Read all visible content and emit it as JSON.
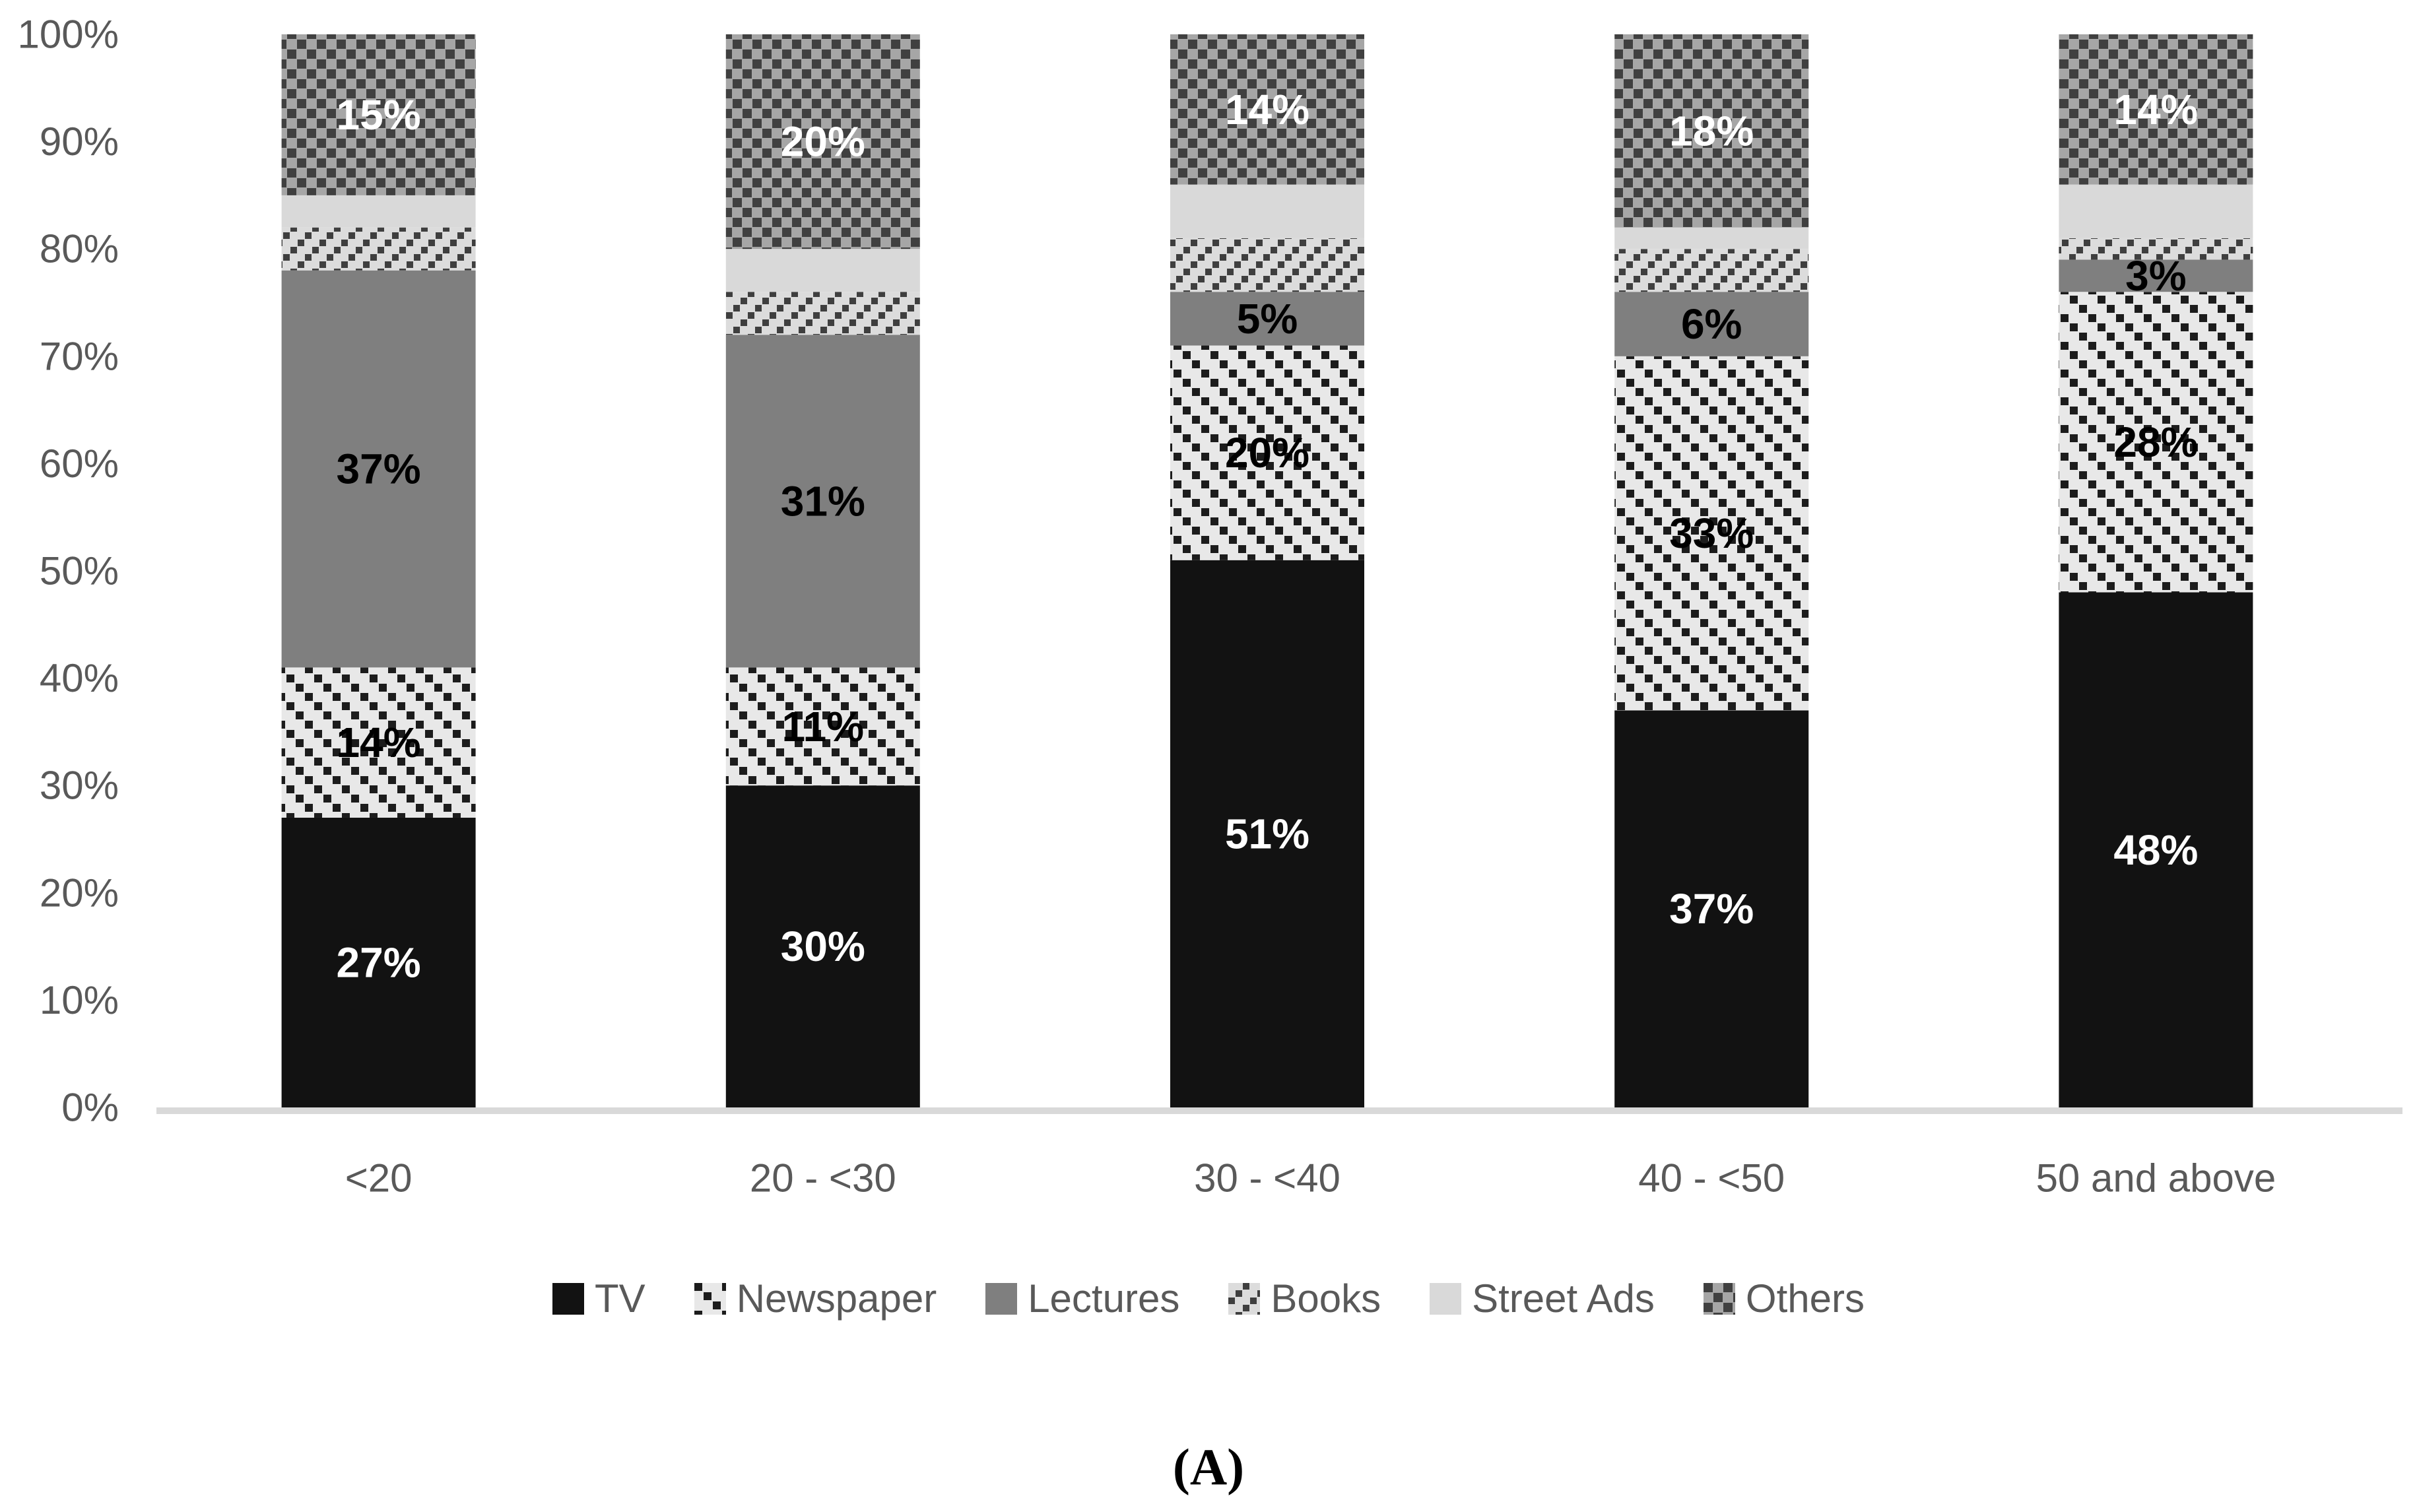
{
  "chart_data": {
    "type": "bar",
    "variant": "stacked-100-percent",
    "title": "",
    "categories": [
      "<20",
      "20 - <30",
      "30 - <40",
      "40 - <50",
      "50 and above"
    ],
    "series": [
      {
        "name": "TV",
        "style": "tv",
        "values": [
          27,
          30,
          51,
          37,
          48
        ],
        "show_labels": true,
        "label_color": "#ffffff"
      },
      {
        "name": "Newspaper",
        "style": "newspaper",
        "values": [
          14,
          11,
          20,
          33,
          28
        ],
        "show_labels": true,
        "label_color": "#000000"
      },
      {
        "name": "Lectures",
        "style": "lectures",
        "values": [
          37,
          31,
          5,
          6,
          3
        ],
        "show_labels": true,
        "label_color": "#000000"
      },
      {
        "name": "Books",
        "style": "books",
        "values": [
          4,
          4,
          5,
          4,
          2
        ],
        "show_labels": false,
        "label_color": "#000000"
      },
      {
        "name": "Street Ads",
        "style": "streetads",
        "values": [
          3,
          4,
          5,
          2,
          5
        ],
        "show_labels": false,
        "label_color": "#000000"
      },
      {
        "name": "Others",
        "style": "others",
        "values": [
          15,
          20,
          14,
          18,
          14
        ],
        "show_labels": true,
        "label_color": "#ffffff"
      }
    ],
    "value_suffix": "%",
    "y_axis": {
      "min": 0,
      "max": 100,
      "tick_step": 10,
      "tick_labels": [
        "0%",
        "10%",
        "20%",
        "30%",
        "40%",
        "50%",
        "60%",
        "70%",
        "80%",
        "90%",
        "100%"
      ]
    },
    "gridlines": false,
    "legend_position": "bottom",
    "caption": "(A)"
  },
  "styles": {
    "tv": {
      "fill": "#121212"
    },
    "newspaper": {
      "bg": "#e8e8e8",
      "fg": "#1c1c1c",
      "pattern": "diagonal-dash-down"
    },
    "lectures": {
      "fill": "#7f7f7f"
    },
    "books": {
      "bg": "#dcdcdc",
      "fg": "#3f3f3f",
      "pattern": "diagonal-dash-up"
    },
    "streetads": {
      "fill": "#d9d9d9"
    },
    "others": {
      "bg": "#a6a6a6",
      "fg": "#404040",
      "pattern": "checker"
    }
  },
  "axis": {
    "text_color": "#595959",
    "baseline_color": "#d9d9d9"
  }
}
